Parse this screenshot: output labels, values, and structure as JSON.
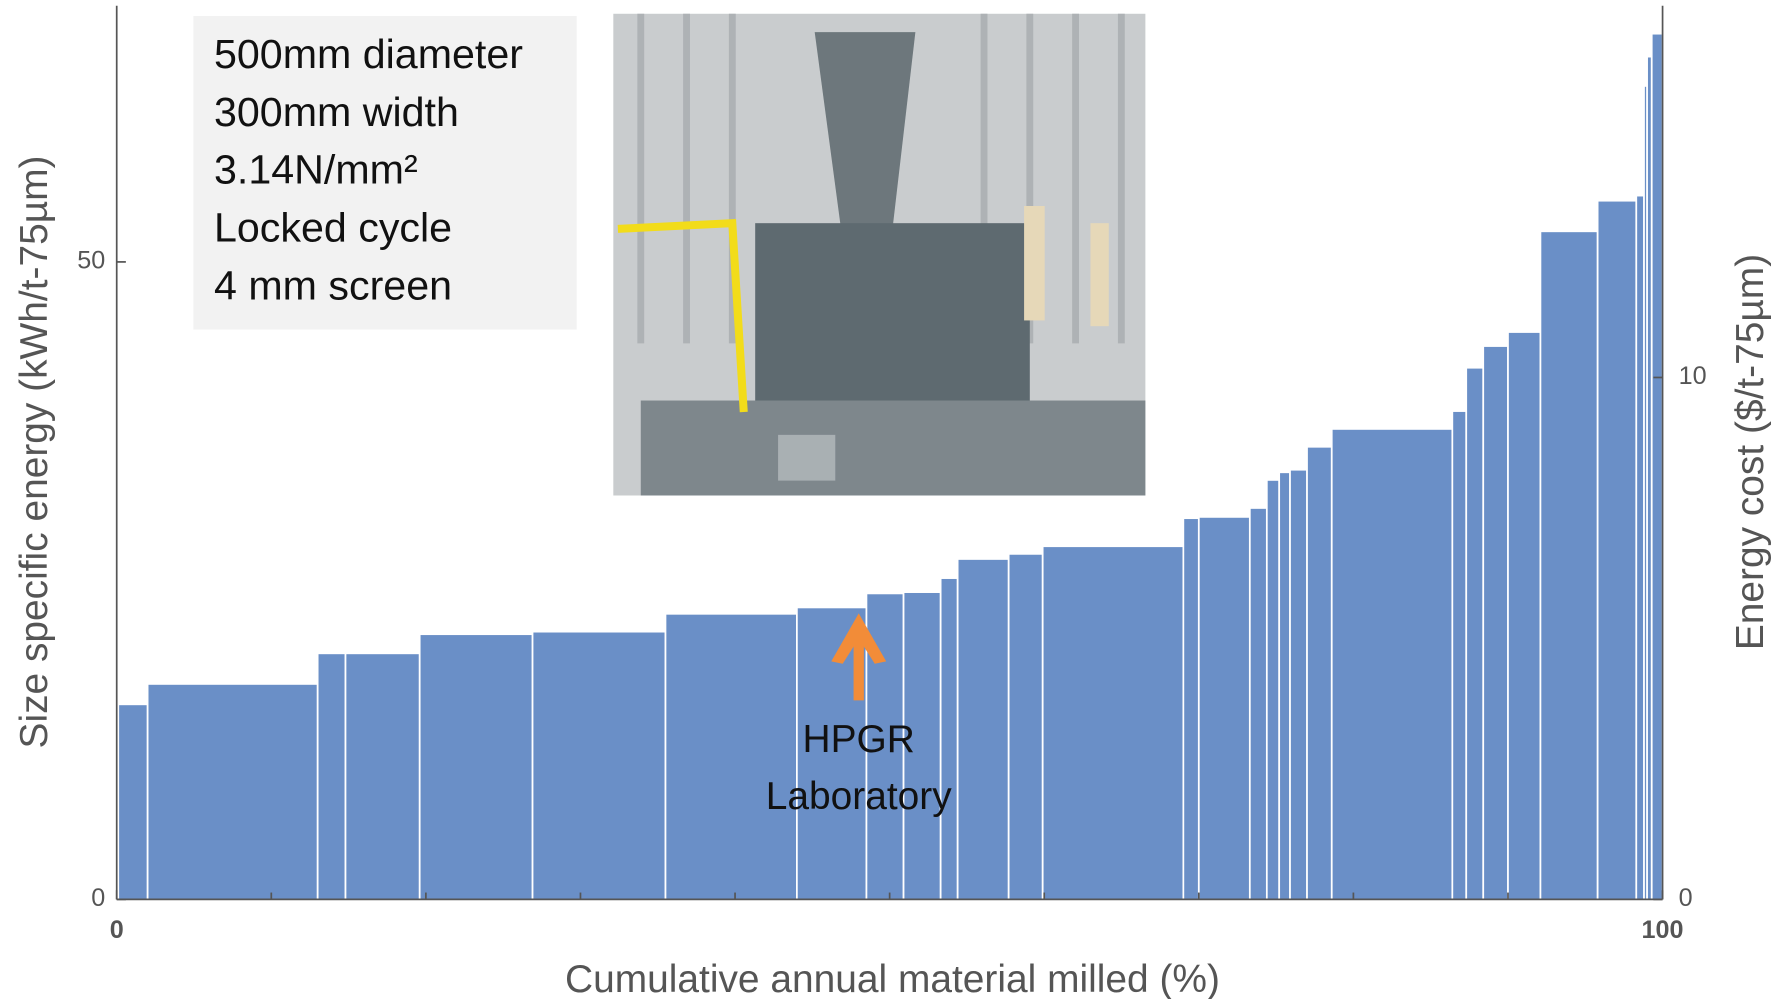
{
  "chart_data": {
    "type": "histogram",
    "x_label": "Cumulative annual material milled (%)",
    "y_label": "Size specific energy (kWh/t-75µm)",
    "y2_label": "Energy cost ($/t-75µm)",
    "bins": [
      0.1,
      2.0,
      13.0,
      14.8,
      19.6,
      26.9,
      35.5,
      44.0,
      48.5,
      50.9,
      53.3,
      54.4,
      57.7,
      59.9,
      69.0,
      70.0,
      73.3,
      74.4,
      75.2,
      75.9,
      77.0,
      78.6,
      86.4,
      87.3,
      88.4,
      90.0,
      92.1,
      95.8,
      98.3,
      98.8,
      99.0,
      99.3,
      100
    ],
    "values": [
      15.3,
      16.9,
      19.3,
      19.3,
      20.8,
      21.0,
      22.4,
      22.9,
      24.0,
      24.1,
      25.2,
      26.7,
      27.1,
      27.7,
      29.9,
      30.0,
      30.7,
      32.9,
      33.5,
      33.7,
      35.5,
      36.9,
      38.3,
      41.7,
      43.4,
      44.5,
      52.4,
      54.8,
      55.2,
      63.8,
      66.1,
      67.9
    ],
    "color": "#6a8fc7",
    "xlim": [
      0,
      100
    ],
    "xticks": [
      0,
      100
    ],
    "x_minor_ticks": [
      10,
      20,
      30,
      40,
      50,
      60,
      70,
      80,
      90
    ],
    "ylim": [
      0,
      70
    ],
    "yticks": [
      0,
      50
    ],
    "y2lim": [
      0,
      17.1
    ],
    "y2ticks": [
      0,
      10
    ],
    "spec_box": [
      "500mm diameter",
      "300mm width",
      "3.14N/mm²",
      "Locked cycle",
      "4 mm screen"
    ],
    "annotation": [
      "HPGR",
      "Laboratory"
    ],
    "annotation_x": 48
  }
}
